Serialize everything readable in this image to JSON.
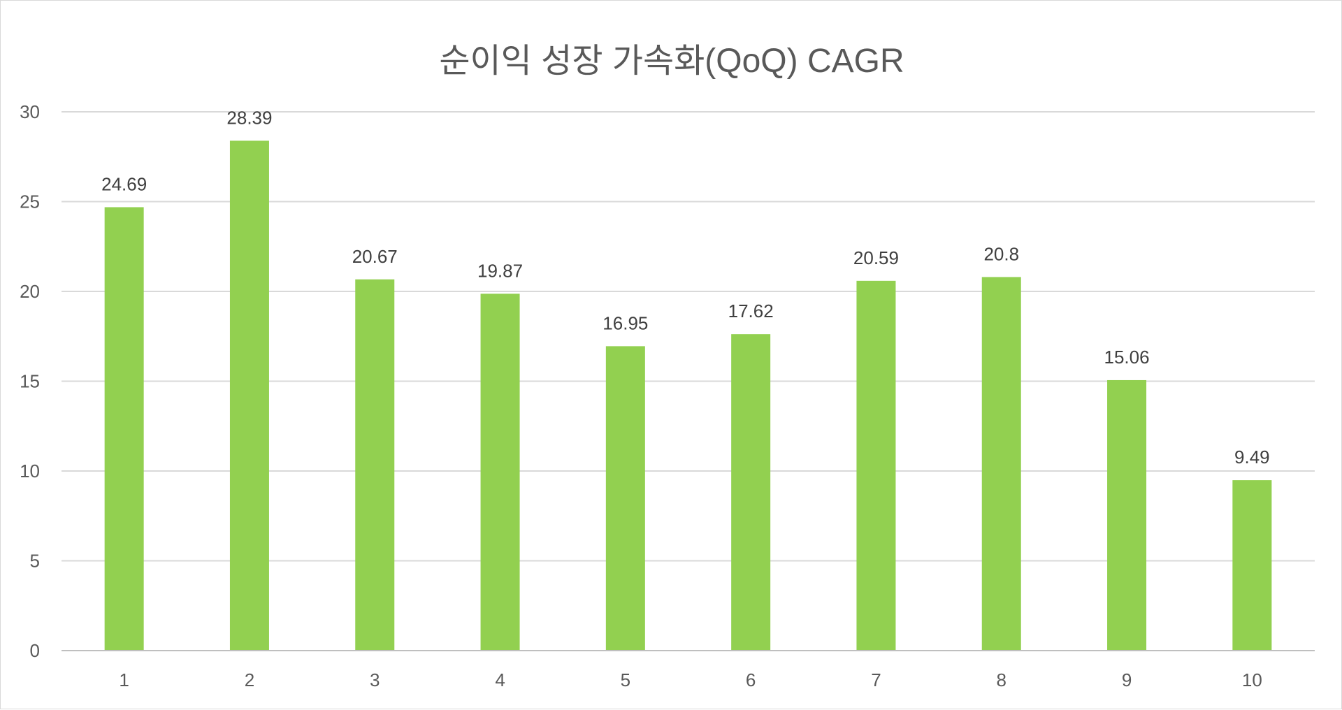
{
  "chart_data": {
    "type": "bar",
    "title": "순이익 성장 가속화(QoQ) CAGR",
    "categories": [
      "1",
      "2",
      "3",
      "4",
      "5",
      "6",
      "7",
      "8",
      "9",
      "10"
    ],
    "values": [
      24.69,
      28.39,
      20.67,
      19.87,
      16.95,
      17.62,
      20.59,
      20.8,
      15.06,
      9.49
    ],
    "data_labels": [
      "24.69",
      "28.39",
      "20.67",
      "19.87",
      "16.95",
      "17.62",
      "20.59",
      "20.8",
      "15.06",
      "9.49"
    ],
    "y_ticks": [
      0,
      5,
      10,
      15,
      20,
      25,
      30
    ],
    "ylim": [
      0,
      30
    ],
    "grid": true,
    "legend": "none",
    "bar_color": "#92d050"
  }
}
